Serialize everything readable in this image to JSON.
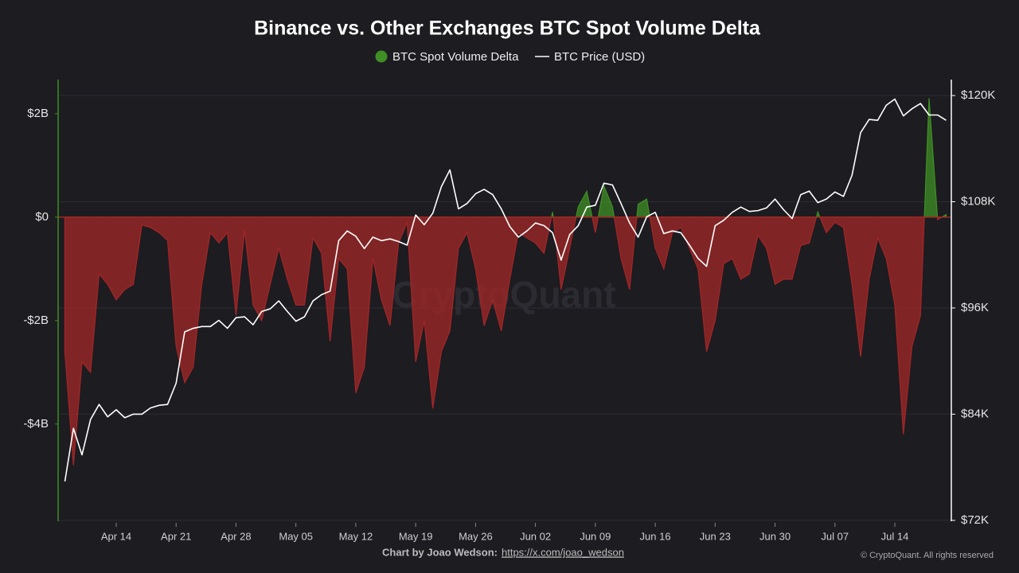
{
  "chart_data": {
    "type": "area",
    "title": "Binance vs. Other Exchanges BTC Spot Volume Delta",
    "watermark": "CryptoQuant",
    "credit": "Chart by Joao Wedson:",
    "credit_link": "https://x.com/joao_wedson",
    "copyright": "© CryptoQuant. All rights reserved",
    "categories": [
      null,
      null,
      null,
      null,
      null,
      null,
      "Apr 14",
      null,
      null,
      null,
      null,
      null,
      null,
      "Apr 21",
      null,
      null,
      null,
      null,
      null,
      null,
      "Apr 28",
      null,
      null,
      null,
      null,
      null,
      null,
      "May 05",
      null,
      null,
      null,
      null,
      null,
      null,
      "May 12",
      null,
      null,
      null,
      null,
      null,
      null,
      "May 19",
      null,
      null,
      null,
      null,
      null,
      null,
      "May 26",
      null,
      null,
      null,
      null,
      null,
      null,
      "Jun 02",
      null,
      null,
      null,
      null,
      null,
      null,
      "Jun 09",
      null,
      null,
      null,
      null,
      null,
      null,
      "Jun 16",
      null,
      null,
      null,
      null,
      null,
      null,
      "Jun 23",
      null,
      null,
      null,
      null,
      null,
      null,
      "Jun 30",
      null,
      null,
      null,
      null,
      null,
      null,
      "Jul 07",
      null,
      null,
      null,
      null,
      null,
      null,
      "Jul 14",
      null,
      null,
      null,
      null,
      null,
      null
    ],
    "series": [
      {
        "name": "BTC Spot Volume Delta",
        "type": "area",
        "color": "#3f8f24",
        "negative_color": "#a32626",
        "values": [
          -2600000000.0,
          -4800000000.0,
          -2800000000.0,
          -3000000000.0,
          -1100000000.0,
          -1300000000.0,
          -1600000000.0,
          -1400000000.0,
          -1300000000.0,
          -150000000.0,
          -200000000.0,
          -300000000.0,
          -450000000.0,
          -2500000000.0,
          -3200000000.0,
          -2900000000.0,
          -1300000000.0,
          -300000000.0,
          -500000000.0,
          -300000000.0,
          -1900000000.0,
          -250000000.0,
          -1700000000.0,
          -2000000000.0,
          -1300000000.0,
          -600000000.0,
          -1200000000.0,
          -1700000000.0,
          -1700000000.0,
          -400000000.0,
          -700000000.0,
          -2400000000.0,
          -800000000.0,
          -1000000000.0,
          -3400000000.0,
          -2900000000.0,
          -800000000.0,
          -1600000000.0,
          -2100000000.0,
          -500000000.0,
          -100000000.0,
          -2800000000.0,
          -2000000000.0,
          -3700000000.0,
          -2600000000.0,
          -2200000000.0,
          -600000000.0,
          -300000000.0,
          -1000000000.0,
          -2100000000.0,
          -1600000000.0,
          -2200000000.0,
          -1200000000.0,
          -300000000.0,
          -400000000.0,
          -500000000.0,
          -700000000.0,
          100000000.0,
          -1400000000.0,
          -600000000.0,
          200000000.0,
          500000000.0,
          -300000000.0,
          600000000.0,
          200000000.0,
          -800000000.0,
          -1400000000.0,
          250000000.0,
          350000000.0,
          -600000000.0,
          -1000000000.0,
          -300000000.0,
          -200000000.0,
          -600000000.0,
          -1000000000.0,
          -2600000000.0,
          -2000000000.0,
          -900000000.0,
          -800000000.0,
          -1200000000.0,
          -1100000000.0,
          -350000000.0,
          -600000000.0,
          -1300000000.0,
          -1200000000.0,
          -1200000000.0,
          -550000000.0,
          -500000000.0,
          100000000.0,
          -300000000.0,
          -100000000.0,
          -200000000.0,
          -1300000000.0,
          -2700000000.0,
          -1200000000.0,
          -400000000.0,
          -800000000.0,
          -1700000000.0,
          -4200000000.0,
          -2500000000.0,
          -1900000000.0,
          2300000000.0,
          -50000000.0,
          50000000.0
        ]
      },
      {
        "name": "BTC Price (USD)",
        "type": "line",
        "axis": "y2",
        "color": "#ffffff",
        "values": [
          76400,
          82400,
          79400,
          83400,
          85100,
          83700,
          84500,
          83600,
          84000,
          84000,
          84700,
          85000,
          85100,
          87500,
          93300,
          93700,
          93900,
          93900,
          94600,
          93700,
          94900,
          95000,
          94100,
          95600,
          95900,
          96800,
          95600,
          94500,
          95000,
          96800,
          97500,
          97900,
          103600,
          104700,
          104100,
          102700,
          104000,
          103600,
          103800,
          103500,
          103100,
          106500,
          105400,
          106700,
          109700,
          111600,
          107200,
          107800,
          108900,
          109400,
          108800,
          107200,
          105200,
          104000,
          104700,
          105600,
          105300,
          104500,
          101400,
          104300,
          105300,
          107400,
          107600,
          110100,
          109900,
          107800,
          105600,
          104000,
          106300,
          106800,
          104400,
          104700,
          104500,
          103100,
          101600,
          100700,
          105300,
          105900,
          106800,
          107400,
          106900,
          107000,
          107300,
          108300,
          107100,
          106100,
          108800,
          109200,
          107900,
          108300,
          109100,
          108600,
          111000,
          115800,
          117300,
          117200,
          118900,
          119600,
          117700,
          118500,
          119100,
          117800,
          117800,
          117200
        ]
      }
    ],
    "ylim": [
      -5880000000.0,
      2660000000.0
    ],
    "yticks": [
      {
        "value": -4000000000.0,
        "label": "-$4B"
      },
      {
        "value": -2000000000.0,
        "label": "-$2B"
      },
      {
        "value": 0,
        "label": "$0"
      },
      {
        "value": 2000000000.0,
        "label": "$2B"
      }
    ],
    "y2lim": [
      71900,
      121800
    ],
    "y2ticks": [
      {
        "value": 72000,
        "label": "$72K"
      },
      {
        "value": 84000,
        "label": "$84K"
      },
      {
        "value": 96000,
        "label": "$96K"
      },
      {
        "value": 108000,
        "label": "$108K"
      },
      {
        "value": 120000,
        "label": "$120K"
      }
    ],
    "grid": true,
    "left_axis_color": "#3f8f24",
    "right_axis_color": "#ffffff"
  }
}
